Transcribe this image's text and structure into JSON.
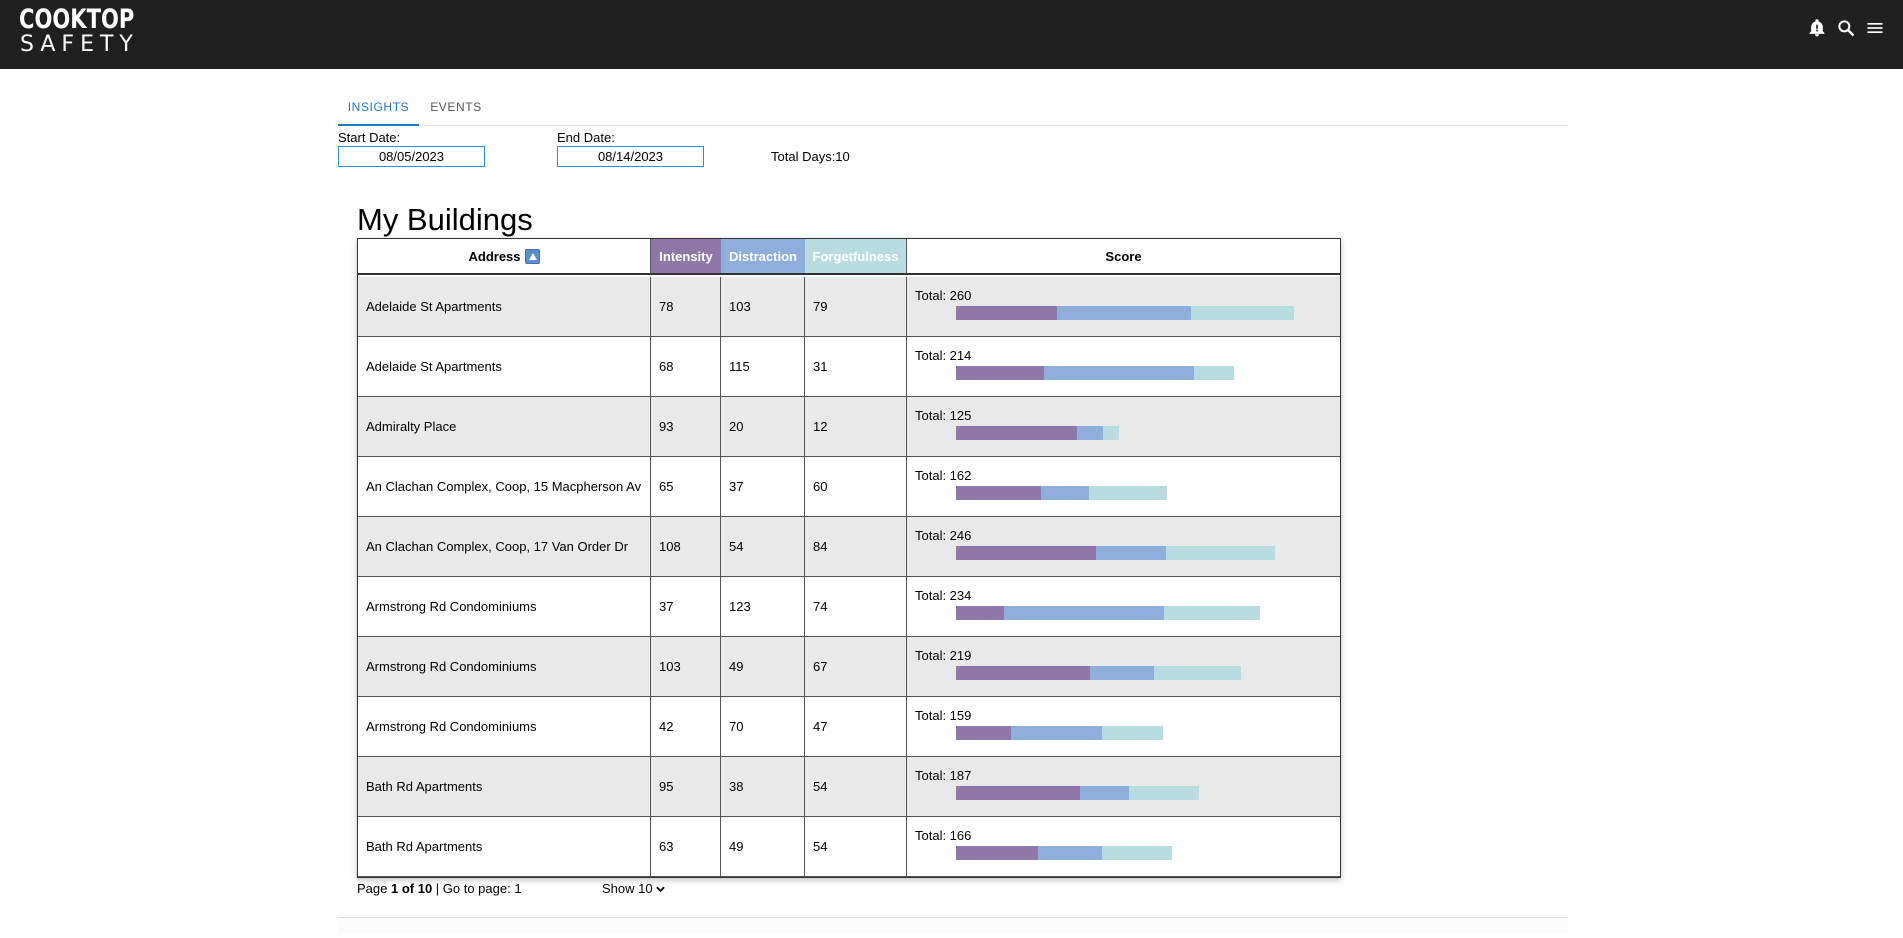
{
  "brand": {
    "line1": "COOKTOP",
    "line2": "SAFETY"
  },
  "header_icons": [
    "bell-icon",
    "search-icon",
    "menu-icon"
  ],
  "tabs": [
    {
      "label": "INSIGHTS",
      "active": true
    },
    {
      "label": "EVENTS",
      "active": false
    }
  ],
  "filters": {
    "start_label": "Start Date:",
    "start_value": "08/05/2023",
    "end_label": "End Date:",
    "end_value": "08/14/2023",
    "total_days": "Total Days:10"
  },
  "title": "My Buildings",
  "columns": {
    "address": "Address",
    "intensity": "Intensity",
    "distraction": "Distraction",
    "forgetfulness": "Forgetfulness",
    "score": "Score"
  },
  "colors": {
    "intensity": "#8e78a8",
    "distraction": "#8eaedc",
    "forgetfulness": "#b8dce0"
  },
  "rows": [
    {
      "address": "Adelaide St Apartments",
      "intensity": 78,
      "distraction": 103,
      "forgetfulness": 79,
      "total": "Total: 260"
    },
    {
      "address": "Adelaide St Apartments",
      "intensity": 68,
      "distraction": 115,
      "forgetfulness": 31,
      "total": "Total: 214"
    },
    {
      "address": "Admiralty Place",
      "intensity": 93,
      "distraction": 20,
      "forgetfulness": 12,
      "total": "Total: 125"
    },
    {
      "address": "An Clachan Complex, Coop, 15 Macpherson Av",
      "intensity": 65,
      "distraction": 37,
      "forgetfulness": 60,
      "total": "Total: 162"
    },
    {
      "address": "An Clachan Complex, Coop, 17 Van Order Dr",
      "intensity": 108,
      "distraction": 54,
      "forgetfulness": 84,
      "total": "Total: 246"
    },
    {
      "address": "Armstrong Rd Condominiums",
      "intensity": 37,
      "distraction": 123,
      "forgetfulness": 74,
      "total": "Total: 234"
    },
    {
      "address": "Armstrong Rd Condominiums",
      "intensity": 103,
      "distraction": 49,
      "forgetfulness": 67,
      "total": "Total: 219"
    },
    {
      "address": "Armstrong Rd Condominiums",
      "intensity": 42,
      "distraction": 70,
      "forgetfulness": 47,
      "total": "Total: 159"
    },
    {
      "address": "Bath Rd Apartments",
      "intensity": 95,
      "distraction": 38,
      "forgetfulness": 54,
      "total": "Total: 187"
    },
    {
      "address": "Bath Rd Apartments",
      "intensity": 63,
      "distraction": 49,
      "forgetfulness": 54,
      "total": "Total: 166"
    }
  ],
  "pagination": {
    "page_prefix": "Page ",
    "page_current": "1 of 10",
    "goto_text": " | Go to page: 1",
    "show_text": "Show 10"
  }
}
